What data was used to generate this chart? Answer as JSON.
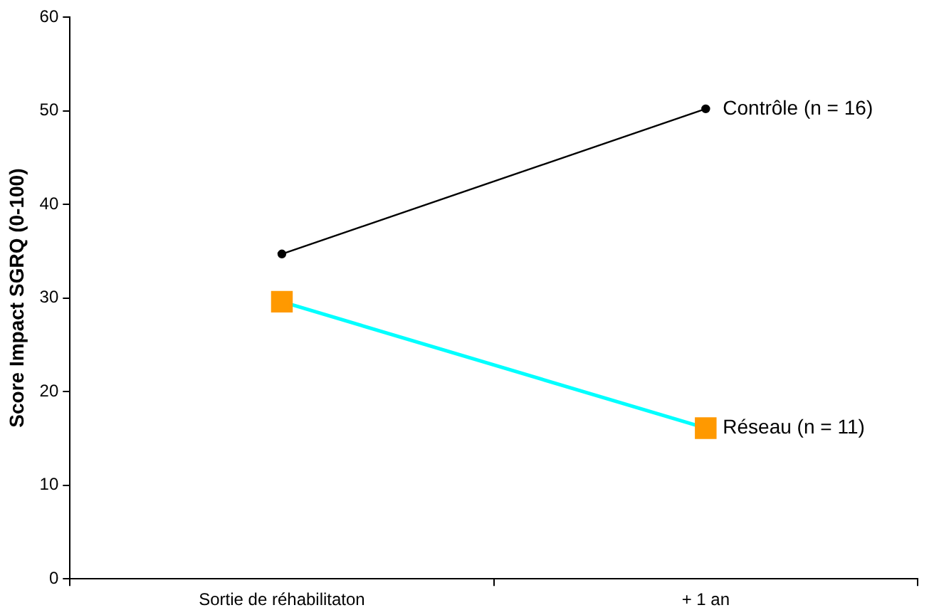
{
  "chart_data": {
    "type": "line",
    "ylabel": "Score Impact SGRQ (0-100)",
    "categories": [
      "Sortie de réhabilitaton",
      "+ 1 an"
    ],
    "series": [
      {
        "name": "Contrôle (n = 16)",
        "color": "#000000",
        "marker": "circle",
        "values": [
          34.7,
          50.2
        ]
      },
      {
        "name": "Réseau (n = 11)",
        "color": "#00ffff",
        "colors": [
          "#ff9900",
          "#ff9900"
        ],
        "marker": "square",
        "values": [
          29.6,
          16.1
        ]
      }
    ],
    "ylim": [
      0,
      60
    ],
    "yticks": [
      0,
      10,
      20,
      30,
      40,
      50,
      60
    ],
    "grid": false,
    "legend": false
  }
}
